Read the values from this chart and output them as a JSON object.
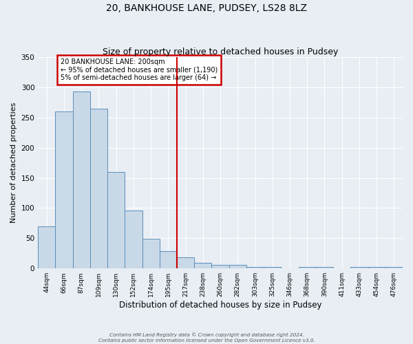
{
  "title": "20, BANKHOUSE LANE, PUDSEY, LS28 8LZ",
  "subtitle": "Size of property relative to detached houses in Pudsey",
  "xlabel": "Distribution of detached houses by size in Pudsey",
  "ylabel": "Number of detached properties",
  "bin_labels": [
    "44sqm",
    "66sqm",
    "87sqm",
    "109sqm",
    "130sqm",
    "152sqm",
    "174sqm",
    "195sqm",
    "217sqm",
    "238sqm",
    "260sqm",
    "282sqm",
    "303sqm",
    "325sqm",
    "346sqm",
    "368sqm",
    "390sqm",
    "411sqm",
    "433sqm",
    "454sqm",
    "476sqm"
  ],
  "bar_heights": [
    70,
    260,
    293,
    265,
    160,
    96,
    49,
    29,
    19,
    9,
    6,
    6,
    3,
    3,
    0,
    2,
    2,
    0,
    2,
    2,
    2
  ],
  "bar_color": "#c9d9e8",
  "bar_edge_color": "#5b8db8",
  "vline_x_index": 7.5,
  "vline_color": "#cc0000",
  "annotation_text": "20 BANKHOUSE LANE: 200sqm\n← 95% of detached houses are smaller (1,190)\n5% of semi-detached houses are larger (64) →",
  "annotation_box_color": "#ffffff",
  "annotation_box_edge": "#cc0000",
  "ylim": [
    0,
    350
  ],
  "yticks": [
    0,
    50,
    100,
    150,
    200,
    250,
    300,
    350
  ],
  "footer_line1": "Contains HM Land Registry data © Crown copyright and database right 2024.",
  "footer_line2": "Contains public sector information licensed under the Open Government Licence v3.0.",
  "background_color": "#e8eef4",
  "plot_background": "#e8eef4",
  "title_fontsize": 10,
  "subtitle_fontsize": 9
}
